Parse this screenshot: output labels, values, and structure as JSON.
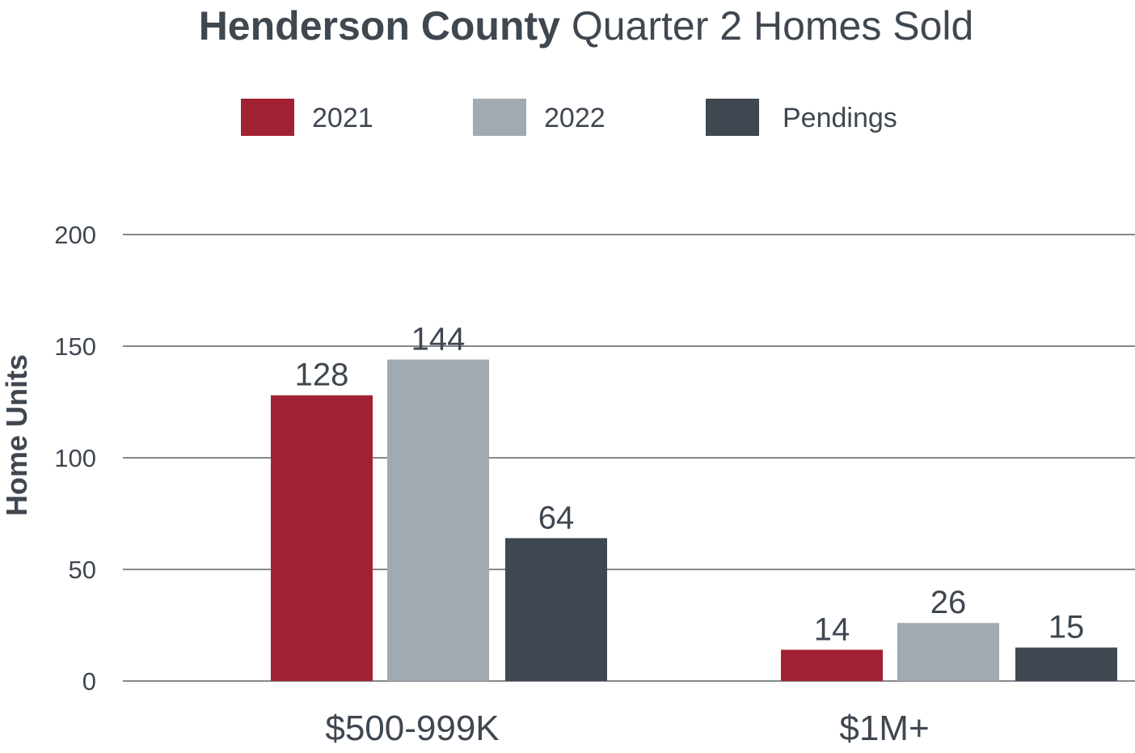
{
  "title": {
    "bold": "Henderson County",
    "rest": "Quarter 2 Homes Sold"
  },
  "chart_data": {
    "type": "bar",
    "categories": [
      "$500-999K",
      "$1M+"
    ],
    "series": [
      {
        "name": "2021",
        "values": [
          128,
          14
        ],
        "color": "#a02232"
      },
      {
        "name": "2022",
        "values": [
          144,
          26
        ],
        "color": "#a1aab0"
      },
      {
        "name": "Pendings",
        "values": [
          64,
          15
        ],
        "color": "#3f4750"
      }
    ],
    "ylabel": "Home Units",
    "xlabel": "",
    "ylim": [
      0,
      200
    ],
    "yticks": [
      0,
      50,
      100,
      150,
      200
    ],
    "grid": true,
    "legend": "top"
  }
}
